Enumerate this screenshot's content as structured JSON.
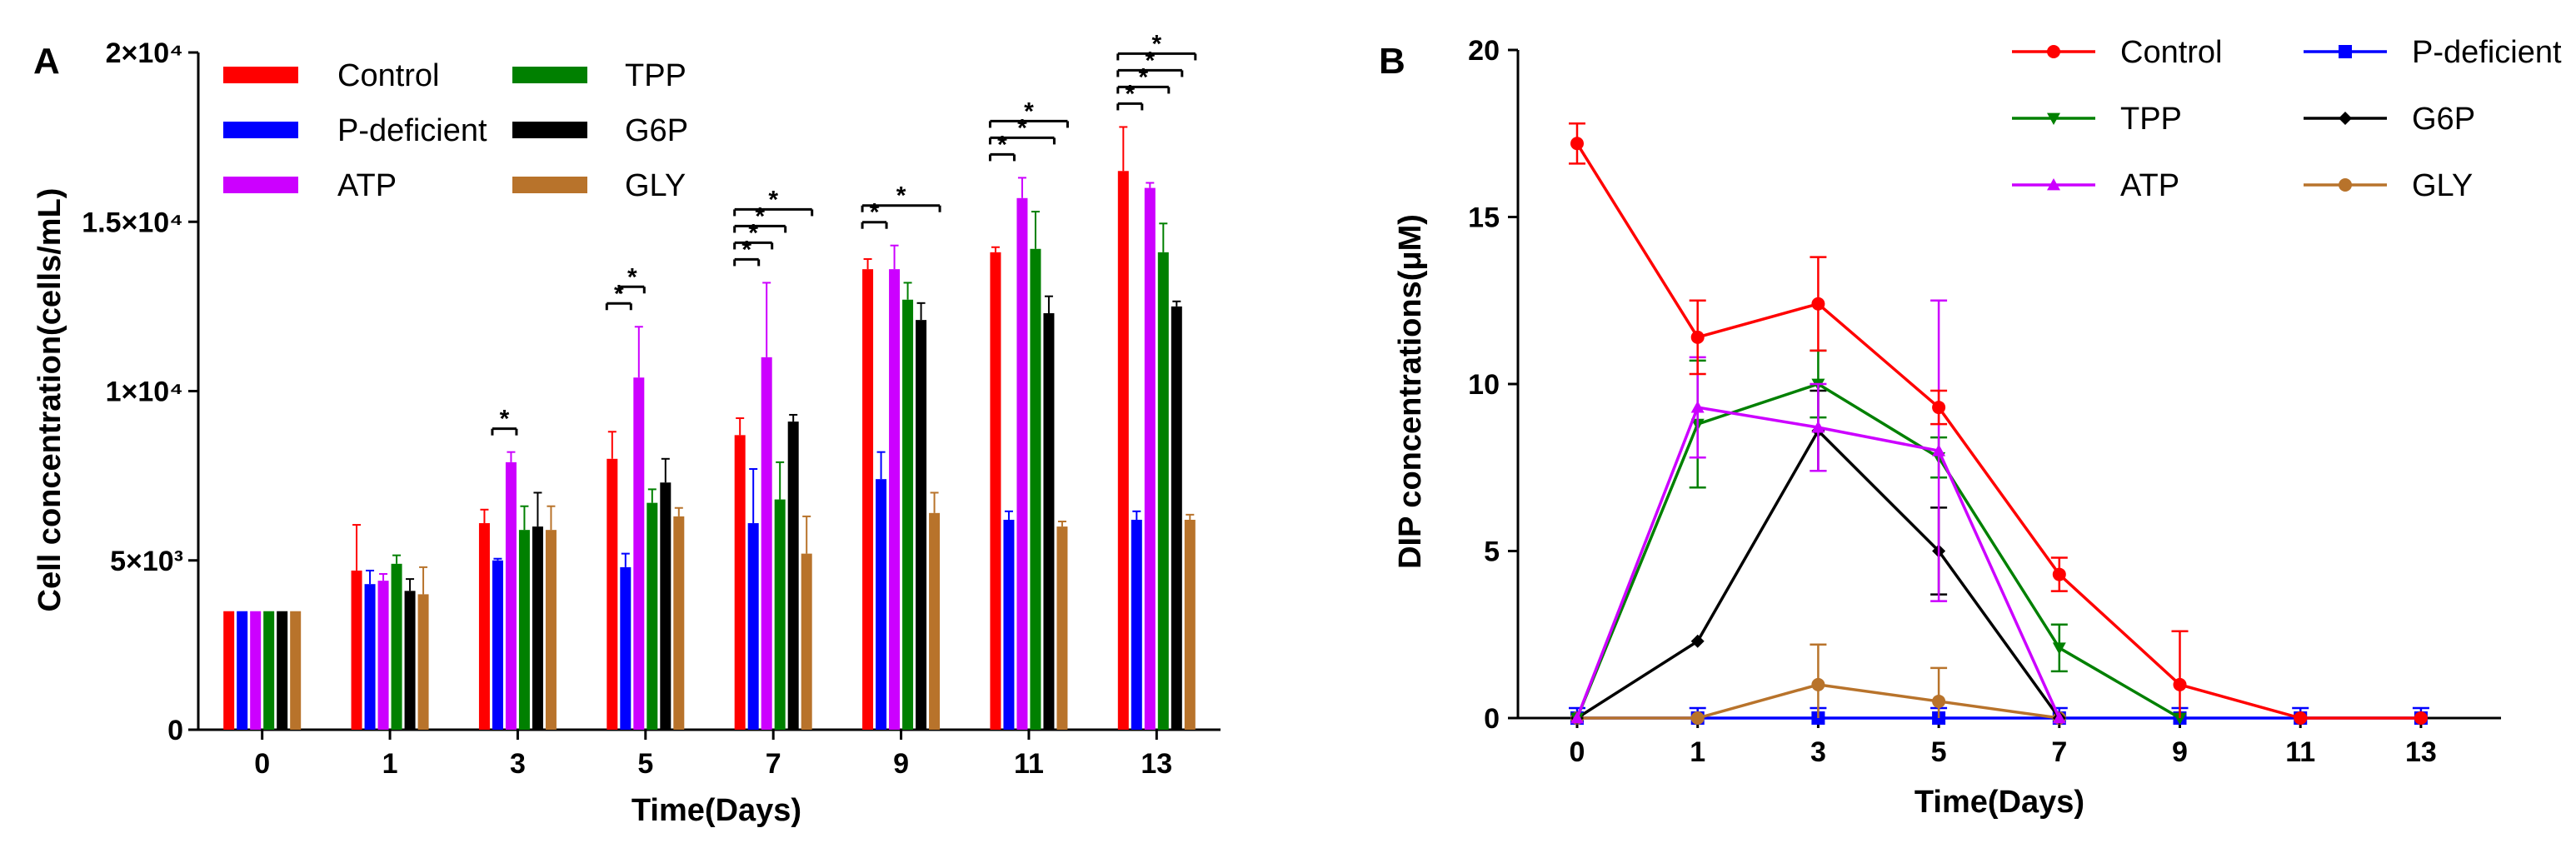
{
  "chart_data": [
    {
      "panel": "A",
      "type": "bar",
      "xlabel": "Time(Days)",
      "ylabel": "Cell concentration(cells/mL)",
      "ylim": [
        0,
        20000
      ],
      "yticks": [
        {
          "value": 0,
          "label": "0"
        },
        {
          "value": 5000,
          "label": "5×10³"
        },
        {
          "value": 10000,
          "label": "1×10⁴"
        },
        {
          "value": 15000,
          "label": "1.5×10⁴"
        },
        {
          "value": 20000,
          "label": "2×10⁴"
        }
      ],
      "categories": [
        "0",
        "1",
        "3",
        "5",
        "7",
        "9",
        "11",
        "13"
      ],
      "series": [
        {
          "name": "Control",
          "color": "#ff0000",
          "values": [
            3500,
            4700,
            6100,
            8000,
            8700,
            13600,
            14100,
            16500
          ],
          "errors": [
            0,
            1350,
            400,
            800,
            500,
            300,
            150,
            1300
          ]
        },
        {
          "name": "P-deficient",
          "color": "#0000ff",
          "values": [
            3500,
            4300,
            5000,
            4800,
            6100,
            7400,
            6200,
            6200
          ],
          "errors": [
            0,
            400,
            50,
            400,
            1600,
            800,
            250,
            250
          ]
        },
        {
          "name": "ATP",
          "color": "#cc00ff",
          "values": [
            3500,
            4400,
            7900,
            10400,
            11000,
            13600,
            15700,
            16000
          ],
          "errors": [
            0,
            200,
            300,
            1500,
            2200,
            700,
            600,
            150
          ]
        },
        {
          "name": "TPP",
          "color": "#008000",
          "values": [
            3500,
            4900,
            5900,
            6700,
            6800,
            12700,
            14200,
            14100
          ],
          "errors": [
            0,
            250,
            700,
            400,
            1100,
            500,
            1100,
            850
          ]
        },
        {
          "name": "G6P",
          "color": "#000000",
          "values": [
            3500,
            4100,
            6000,
            7300,
            9100,
            12100,
            12300,
            12500
          ],
          "errors": [
            0,
            350,
            1000,
            700,
            200,
            500,
            500,
            150
          ]
        },
        {
          "name": "GLY",
          "color": "#b8732b",
          "values": [
            3500,
            4000,
            5900,
            6300,
            5200,
            6400,
            6000,
            6200
          ],
          "errors": [
            0,
            800,
            700,
            250,
            1100,
            600,
            150,
            150
          ]
        }
      ],
      "significance": [
        {
          "category": "3",
          "from": "P-deficient",
          "to": "ATP",
          "label": "*"
        },
        {
          "category": "5",
          "from": "Control",
          "to": "P-deficient",
          "label": "*"
        },
        {
          "category": "5",
          "from": "P-deficient",
          "to": "ATP",
          "label": "*"
        },
        {
          "category": "7",
          "from": "Control",
          "to": "P-deficient",
          "label": "*"
        },
        {
          "category": "7",
          "from": "Control",
          "to": "ATP",
          "label": "*"
        },
        {
          "category": "7",
          "from": "Control",
          "to": "TPP",
          "label": "*"
        },
        {
          "category": "7",
          "from": "Control",
          "to": "GLY",
          "label": "*"
        },
        {
          "category": "9",
          "from": "Control",
          "to": "P-deficient",
          "label": "*"
        },
        {
          "category": "9",
          "from": "Control",
          "to": "GLY",
          "label": "*"
        },
        {
          "category": "11",
          "from": "Control",
          "to": "P-deficient",
          "label": "*"
        },
        {
          "category": "11",
          "from": "Control",
          "to": "G6P",
          "label": "*"
        },
        {
          "category": "11",
          "from": "Control",
          "to": "GLY",
          "label": "*"
        },
        {
          "category": "13",
          "from": "Control",
          "to": "P-deficient",
          "label": "*"
        },
        {
          "category": "13",
          "from": "Control",
          "to": "TPP",
          "label": "*"
        },
        {
          "category": "13",
          "from": "Control",
          "to": "G6P",
          "label": "*"
        },
        {
          "category": "13",
          "from": "Control",
          "to": "GLY",
          "label": "*"
        }
      ],
      "legend": [
        "Control",
        "TPP",
        "P-deficient",
        "G6P",
        "ATP",
        "GLY"
      ]
    },
    {
      "panel": "B",
      "type": "line",
      "xlabel": "Time(Days)",
      "ylabel": "DIP concentrations(μM)",
      "ylim": [
        0,
        20
      ],
      "yticks": [
        {
          "value": 0,
          "label": "0"
        },
        {
          "value": 5,
          "label": "5"
        },
        {
          "value": 10,
          "label": "10"
        },
        {
          "value": 15,
          "label": "15"
        },
        {
          "value": 20,
          "label": "20"
        }
      ],
      "x": [
        "0",
        "1",
        "3",
        "5",
        "7",
        "9",
        "11",
        "13"
      ],
      "series": [
        {
          "name": "Control",
          "color": "#ff0000",
          "marker": "circle",
          "values": [
            17.2,
            11.4,
            12.4,
            9.3,
            4.3,
            1.0,
            0,
            0
          ],
          "errors": [
            0.6,
            1.1,
            1.4,
            0.5,
            0.5,
            1.6,
            0,
            0
          ]
        },
        {
          "name": "P-deficient",
          "color": "#0000ff",
          "marker": "square",
          "values": [
            0,
            0,
            0,
            0,
            0,
            0,
            0,
            0
          ],
          "errors": [
            0.3,
            0.3,
            0.3,
            0.3,
            0.3,
            0.3,
            0.3,
            0.3
          ]
        },
        {
          "name": "TPP",
          "color": "#008000",
          "marker": "triangle-down",
          "values": [
            0,
            8.8,
            10.0,
            7.8,
            2.1,
            0,
            0,
            0
          ],
          "errors": [
            0,
            1.9,
            1.0,
            0.6,
            0.7,
            0,
            0,
            0
          ]
        },
        {
          "name": "G6P",
          "color": "#000000",
          "marker": "diamond",
          "values": [
            0,
            2.3,
            8.6,
            5.0,
            0,
            0,
            0,
            0
          ],
          "errors": [
            0,
            0,
            1.2,
            1.3,
            0,
            0,
            0,
            0
          ]
        },
        {
          "name": "ATP",
          "color": "#cc00ff",
          "marker": "triangle-up",
          "values": [
            0,
            9.3,
            8.7,
            8.0,
            0,
            0,
            0,
            0
          ],
          "errors": [
            0,
            1.5,
            1.3,
            4.5,
            0,
            0,
            0,
            0
          ]
        },
        {
          "name": "GLY",
          "color": "#b8732b",
          "marker": "circle",
          "values": [
            0,
            0,
            1.0,
            0.5,
            0,
            0,
            0,
            0
          ],
          "errors": [
            0,
            0,
            1.2,
            1.0,
            0,
            0,
            0,
            0
          ]
        }
      ],
      "legend": [
        "Control",
        "P-deficient",
        "TPP",
        "G6P",
        "ATP",
        "GLY"
      ]
    }
  ]
}
